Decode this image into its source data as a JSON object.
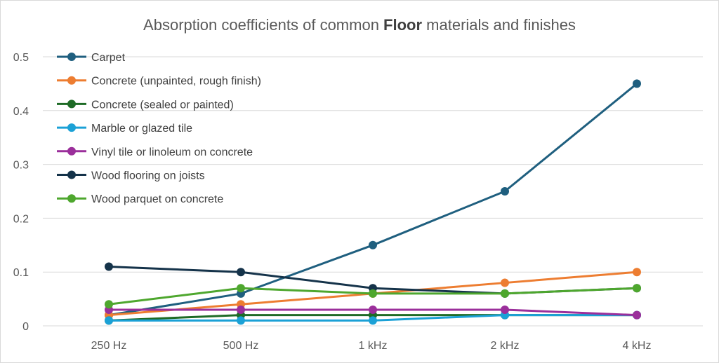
{
  "chart_data": {
    "type": "line",
    "title_parts": [
      "Absorption coefficients of common ",
      "Floor",
      " materials and finishes"
    ],
    "title": "Absorption coefficients of common Floor materials and finishes",
    "xlabel": "",
    "ylabel": "",
    "categories": [
      "250 Hz",
      "500 Hz",
      "1 kHz",
      "2 kHz",
      "4 kHz"
    ],
    "ylim": [
      0,
      0.5
    ],
    "yticks": [
      0,
      0.1,
      0.2,
      0.3,
      0.4,
      0.5
    ],
    "ytick_labels": [
      "0",
      "0.1",
      "0.2",
      "0.3",
      "0.4",
      "0.5"
    ],
    "grid": true,
    "legend_position": "top-left",
    "series": [
      {
        "name": "Carpet",
        "color": "#1f5f7f",
        "values": [
          0.02,
          0.06,
          0.15,
          0.25,
          0.45
        ]
      },
      {
        "name": "Concrete (unpainted, rough finish)",
        "color": "#ed7d31",
        "values": [
          0.02,
          0.04,
          0.06,
          0.08,
          0.1
        ]
      },
      {
        "name": "Concrete (sealed or painted)",
        "color": "#1e6b26",
        "values": [
          0.01,
          0.02,
          0.02,
          0.02,
          0.02
        ]
      },
      {
        "name": "Marble or glazed tile",
        "color": "#1ba1d6",
        "values": [
          0.01,
          0.01,
          0.01,
          0.02,
          0.02
        ]
      },
      {
        "name": "Vinyl tile or linoleum on concrete",
        "color": "#9b2f9b",
        "values": [
          0.03,
          0.03,
          0.03,
          0.03,
          0.02
        ]
      },
      {
        "name": "Wood flooring on joists",
        "color": "#15334a",
        "values": [
          0.11,
          0.1,
          0.07,
          0.06,
          0.07
        ]
      },
      {
        "name": "Wood parquet on concrete",
        "color": "#4ea72e",
        "values": [
          0.04,
          0.07,
          0.06,
          0.06,
          0.07
        ]
      }
    ]
  }
}
